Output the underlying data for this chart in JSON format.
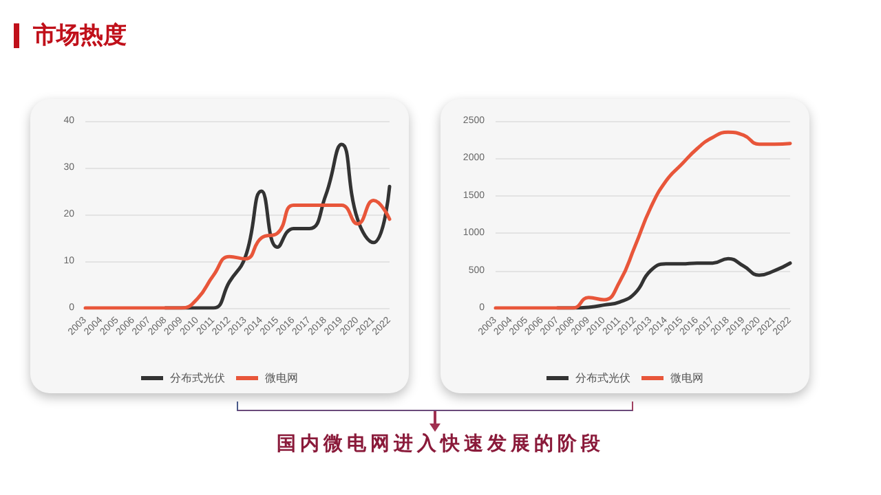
{
  "chart_data": [
    {
      "type": "line",
      "title": "市场热度",
      "annotations": [
        "国内微电网进入快速发展的阶段"
      ],
      "categories": [
        "2003",
        "2004",
        "2005",
        "2006",
        "2007",
        "2008",
        "2009",
        "2010",
        "2011",
        "2012",
        "2013",
        "2014",
        "2015",
        "2016",
        "2017",
        "2018",
        "2019",
        "2020",
        "2021",
        "2022"
      ],
      "series": [
        {
          "name": "分布式光伏",
          "color": "#333333",
          "values": [
            null,
            null,
            null,
            null,
            null,
            0,
            0,
            0,
            0,
            5.6,
            11,
            25,
            13,
            17,
            17,
            24,
            35,
            19,
            14,
            26
          ]
        },
        {
          "name": "微电网",
          "color": "#e8563a",
          "values": [
            0,
            0,
            0,
            0,
            0,
            0,
            0,
            2,
            7,
            11,
            10.5,
            15,
            16,
            22,
            22,
            22,
            22,
            18,
            23,
            19
          ]
        }
      ],
      "ylim": [
        0,
        40
      ],
      "yticks": [
        0,
        10,
        20,
        30,
        40
      ],
      "grid": "y",
      "legend": "bottom",
      "marker": "none",
      "line_style": "solid"
    },
    {
      "type": "line",
      "categories": [
        "2003",
        "2004",
        "2005",
        "2006",
        "2007",
        "2008",
        "2009",
        "2010",
        "2011",
        "2012",
        "2013",
        "2014",
        "2015",
        "2016",
        "2017",
        "2018",
        "2019",
        "2020",
        "2021",
        "2022"
      ],
      "series": [
        {
          "name": "分布式光伏",
          "color": "#333333",
          "values": [
            null,
            null,
            null,
            null,
            0,
            0,
            10,
            40,
            80,
            200,
            500,
            590,
            590,
            600,
            600,
            660,
            560,
            440,
            500,
            600
          ]
        },
        {
          "name": "微电网",
          "color": "#e8563a",
          "values": [
            0,
            0,
            0,
            0,
            0,
            0,
            140,
            110,
            350,
            830,
            1340,
            1700,
            1920,
            2130,
            2280,
            2350,
            2310,
            2190,
            2190,
            2200
          ]
        }
      ],
      "ylim": [
        0,
        2500
      ],
      "yticks": [
        0,
        500,
        1000,
        1500,
        2000,
        2500
      ],
      "grid": "y",
      "legend": "bottom",
      "marker": "none",
      "line_style": "solid"
    }
  ]
}
